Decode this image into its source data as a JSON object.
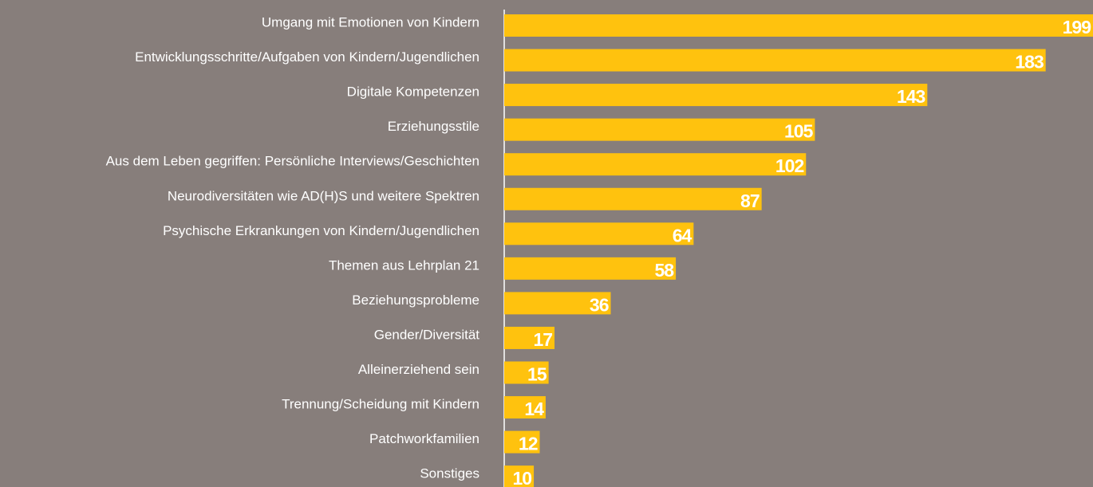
{
  "chart_data": {
    "type": "bar",
    "orientation": "horizontal",
    "categories": [
      "Umgang mit Emotionen von Kindern",
      "Entwicklungsschritte/Aufgaben von Kindern/Jugendlichen",
      "Digitale Kompetenzen",
      "Erziehungsstile",
      "Aus dem Leben gegriffen: Persönliche Interviews/Geschichten",
      "Neurodiversitäten wie AD(H)S und weitere Spektren",
      "Psychische Erkrankungen von Kindern/Jugendlichen",
      "Themen aus Lehrplan 21",
      "Beziehungsprobleme",
      "Gender/Diversität",
      "Alleinerziehend sein",
      "Trennung/Scheidung mit Kindern",
      "Patchworkfamilien",
      "Sonstiges"
    ],
    "values": [
      199,
      183,
      143,
      105,
      102,
      87,
      64,
      58,
      36,
      17,
      15,
      14,
      12,
      10
    ],
    "color": "#ffc20e"
  }
}
